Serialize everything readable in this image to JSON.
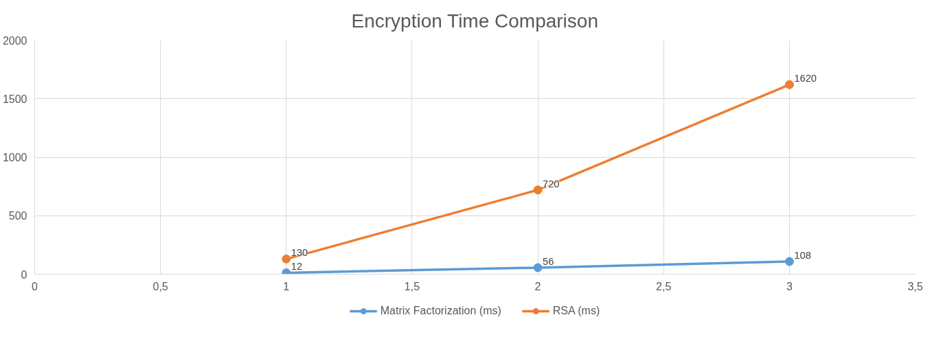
{
  "chart_data": {
    "type": "line",
    "title": "Encryption Time Comparison",
    "x": [
      1,
      2,
      3
    ],
    "series": [
      {
        "name": "Matrix Factorization (ms)",
        "color": "#5b9bd5",
        "values": [
          12,
          56,
          108
        ]
      },
      {
        "name": "RSA (ms)",
        "color": "#ed7d31",
        "values": [
          130,
          720,
          1620
        ]
      }
    ],
    "xlim": [
      0,
      3.5
    ],
    "xticks": [
      0,
      {
        "value": 0.5,
        "label": "0,5"
      },
      1,
      {
        "value": 1.5,
        "label": "1,5"
      },
      2,
      {
        "value": 2.5,
        "label": "2,5"
      },
      3,
      {
        "value": 3.5,
        "label": "3,5"
      }
    ],
    "ylim": [
      0,
      2000
    ],
    "yticks": [
      0,
      500,
      1000,
      1500,
      2000
    ],
    "grid": true,
    "legend": "bottom",
    "marker": "circle",
    "line_style": "solid",
    "data_labels": true
  }
}
